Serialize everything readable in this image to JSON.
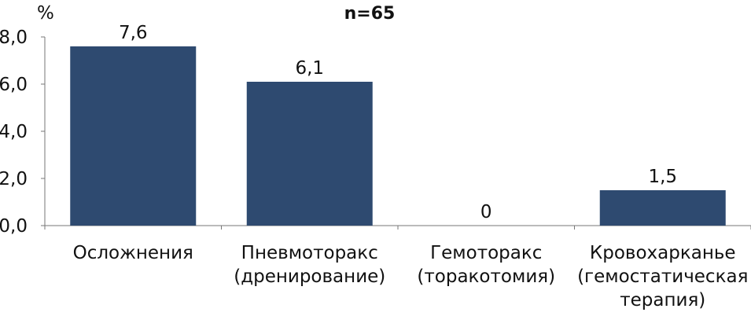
{
  "chart_data": {
    "type": "bar",
    "title": "n=65",
    "ylabel": "%",
    "xlabel": "",
    "categories": [
      [
        "Осложнения"
      ],
      [
        "Пневмоторакс",
        "(дренирование)"
      ],
      [
        "Гемоторакс",
        "(торакотомия)"
      ],
      [
        "Кровохарканье",
        "(гемостатическая",
        "терапия)"
      ]
    ],
    "values": [
      7.6,
      6.1,
      0,
      1.5
    ],
    "value_labels": [
      "7,6",
      "6,1",
      "0",
      "1,5"
    ],
    "ylim": [
      0,
      8
    ],
    "yticks": [
      0,
      2,
      4,
      6,
      8
    ],
    "ytick_labels": [
      "0,0",
      "2,0",
      "4,0",
      "6,0",
      "8,0"
    ],
    "grid": false,
    "legend": "none",
    "colors": {
      "bar": "#2e4a70",
      "axis": "#777777",
      "text": "#111111"
    }
  }
}
